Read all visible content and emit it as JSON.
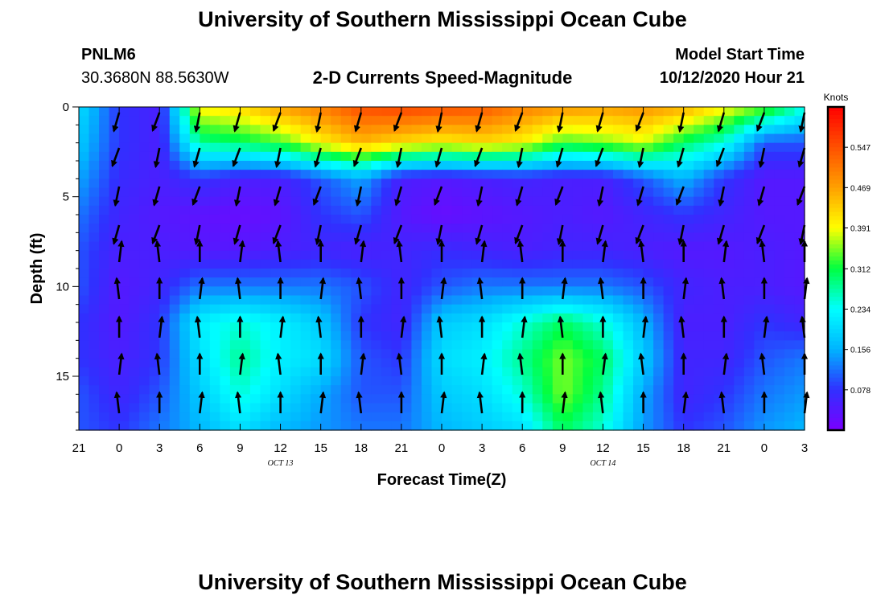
{
  "header": {
    "title": "University of Southern Mississippi Ocean Cube",
    "footer_title": "University of Southern Mississippi Ocean Cube",
    "station_id": "PNLM6",
    "station_coords": "30.3680N 88.5630W",
    "model_start_label": "Model Start Time",
    "model_start_value": "10/12/2020 Hour 21"
  },
  "chart_data": {
    "type": "heatmap",
    "title": "2-D Currents Speed-Magnitude",
    "xlabel": "Forecast Time(Z)",
    "ylabel": "Depth (ft)",
    "x_tick_labels": [
      "21",
      "0",
      "3",
      "6",
      "9",
      "12",
      "15",
      "18",
      "21",
      "0",
      "3",
      "6",
      "9",
      "12",
      "15",
      "18",
      "21",
      "0",
      "3"
    ],
    "x_date_labels": [
      {
        "label": "OCT 13",
        "at_tick": 5
      },
      {
        "label": "OCT 14",
        "at_tick": 13
      }
    ],
    "y_tick_labels": [
      "0",
      "5",
      "10",
      "15"
    ],
    "y_range": [
      0,
      18
    ],
    "x_range_hours": [
      0,
      54
    ],
    "colorbar": {
      "title": "Knots",
      "ticks": [
        "0.547",
        "0.469",
        "0.391",
        "0.312",
        "0.234",
        "0.156",
        "0.078"
      ],
      "tick_values": [
        0.547,
        0.469,
        0.391,
        0.312,
        0.234,
        0.156,
        0.078
      ],
      "range": [
        0,
        0.625
      ],
      "colors": [
        "#7a00ff",
        "#3030ff",
        "#00b4ff",
        "#00ffff",
        "#00ff40",
        "#ffff00",
        "#ffa000",
        "#ff5000",
        "#ff0000"
      ]
    },
    "speed_profile_knots": {
      "depths_ft": [
        0,
        2,
        4,
        6,
        8,
        10,
        12,
        14,
        16,
        18
      ],
      "hours": [
        0,
        3,
        6,
        9,
        12,
        15,
        18,
        21,
        24,
        27,
        30,
        33,
        36,
        39,
        42,
        45,
        48,
        51,
        54
      ],
      "values": [
        [
          0.2,
          0.08,
          0.05,
          0.4,
          0.42,
          0.47,
          0.5,
          0.55,
          0.56,
          0.55,
          0.54,
          0.5,
          0.48,
          0.47,
          0.48,
          0.46,
          0.4,
          0.35,
          0.25
        ],
        [
          0.18,
          0.08,
          0.05,
          0.28,
          0.3,
          0.33,
          0.4,
          0.45,
          0.42,
          0.4,
          0.42,
          0.4,
          0.33,
          0.35,
          0.38,
          0.3,
          0.25,
          0.1,
          0.1
        ],
        [
          0.15,
          0.07,
          0.05,
          0.08,
          0.05,
          0.05,
          0.1,
          0.15,
          0.05,
          0.04,
          0.05,
          0.06,
          0.05,
          0.05,
          0.1,
          0.16,
          0.08,
          0.04,
          0.04
        ],
        [
          0.12,
          0.06,
          0.04,
          0.03,
          0.02,
          0.03,
          0.08,
          0.1,
          0.04,
          0.02,
          0.03,
          0.04,
          0.05,
          0.04,
          0.06,
          0.08,
          0.06,
          0.04,
          0.04
        ],
        [
          0.1,
          0.05,
          0.05,
          0.04,
          0.04,
          0.05,
          0.06,
          0.05,
          0.06,
          0.07,
          0.06,
          0.05,
          0.06,
          0.06,
          0.05,
          0.04,
          0.04,
          0.05,
          0.04
        ],
        [
          0.1,
          0.04,
          0.06,
          0.12,
          0.12,
          0.12,
          0.12,
          0.1,
          0.06,
          0.1,
          0.12,
          0.12,
          0.12,
          0.12,
          0.1,
          0.06,
          0.05,
          0.05,
          0.04
        ],
        [
          0.08,
          0.04,
          0.08,
          0.22,
          0.25,
          0.22,
          0.18,
          0.08,
          0.06,
          0.18,
          0.2,
          0.25,
          0.3,
          0.25,
          0.16,
          0.05,
          0.05,
          0.08,
          0.06
        ],
        [
          0.08,
          0.05,
          0.08,
          0.2,
          0.28,
          0.22,
          0.2,
          0.1,
          0.08,
          0.2,
          0.22,
          0.28,
          0.35,
          0.3,
          0.18,
          0.06,
          0.06,
          0.1,
          0.12
        ],
        [
          0.1,
          0.06,
          0.1,
          0.18,
          0.25,
          0.2,
          0.15,
          0.1,
          0.1,
          0.18,
          0.2,
          0.25,
          0.35,
          0.28,
          0.15,
          0.06,
          0.08,
          0.12,
          0.14
        ],
        [
          0.1,
          0.08,
          0.12,
          0.16,
          0.2,
          0.16,
          0.14,
          0.12,
          0.12,
          0.16,
          0.18,
          0.2,
          0.3,
          0.25,
          0.14,
          0.08,
          0.1,
          0.14,
          0.16
        ]
      ]
    }
  }
}
